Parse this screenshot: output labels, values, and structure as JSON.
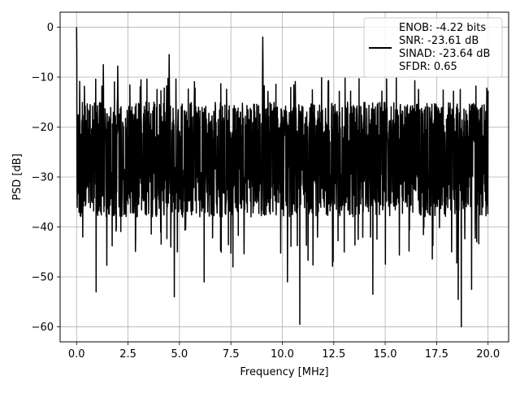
{
  "chart_data": {
    "type": "line",
    "xlabel": "Frequency [MHz]",
    "ylabel": "PSD [dB]",
    "xlim": [
      -0.8,
      21.0
    ],
    "ylim": [
      -63.0,
      3.0
    ],
    "grid": true,
    "legend_position": "top-right",
    "x_ticks": [
      0.0,
      2.5,
      5.0,
      7.5,
      10.0,
      12.5,
      15.0,
      17.5,
      20.0
    ],
    "x_tick_labels": [
      "0.0",
      "2.5",
      "5.0",
      "7.5",
      "10.0",
      "12.5",
      "15.0",
      "17.5",
      "20.0"
    ],
    "y_ticks": [
      0,
      -10,
      -20,
      -30,
      -40,
      -50,
      -60
    ],
    "y_tick_labels": [
      "0",
      "−10",
      "−20",
      "−30",
      "−40",
      "−50",
      "−60"
    ],
    "series": [
      {
        "color": "#000000",
        "x_range": [
          0.0,
          20.0
        ],
        "noise_floor_upper": -15,
        "noise_floor_lower": -38,
        "peaks": [
          {
            "x": 0.0,
            "y": 0.0
          },
          {
            "x": 4.5,
            "y": -5.5
          },
          {
            "x": 9.05,
            "y": -2.0
          },
          {
            "x": 1.3,
            "y": -7.5
          },
          {
            "x": 2.0,
            "y": -7.8
          }
        ],
        "dips": [
          {
            "x": 0.95,
            "y": -53
          },
          {
            "x": 4.75,
            "y": -54
          },
          {
            "x": 6.2,
            "y": -51
          },
          {
            "x": 10.85,
            "y": -59.5
          },
          {
            "x": 14.4,
            "y": -53.5
          },
          {
            "x": 18.55,
            "y": -54.5
          },
          {
            "x": 18.7,
            "y": -60
          },
          {
            "x": 19.2,
            "y": -52.5
          },
          {
            "x": 10.25,
            "y": -51
          },
          {
            "x": 7.6,
            "y": -48
          }
        ]
      }
    ],
    "legend": {
      "lines": [
        "ENOB: -4.22 bits",
        "SNR: -23.61 dB",
        "SINAD: -23.64 dB",
        "SFDR: 0.65"
      ]
    }
  }
}
